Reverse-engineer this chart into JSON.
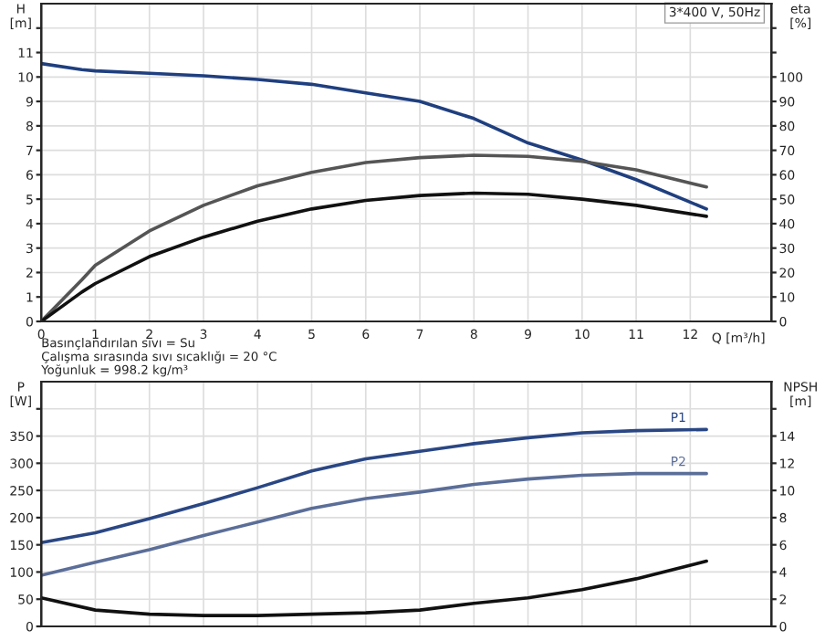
{
  "chart_data": [
    {
      "type": "line",
      "xlabel": "Q [m³/h]",
      "ylabel": "H\n[m]",
      "y2label": "eta\n[%]",
      "annotations": [
        "3*400 V, 50Hz",
        "Basınçlandırılan sıvı = Su",
        "Çalışma sırasında sıvı sıcaklığı = 20 °C",
        "Yoğunluk = 998.2 kg/m³"
      ],
      "x": [
        0,
        0.75,
        1,
        2,
        3,
        4,
        5,
        6,
        7,
        8,
        9,
        10,
        11,
        12.3
      ],
      "series": [
        {
          "color": "#1f3f7f",
          "values": [
            10.55,
            10.3,
            10.25,
            10.15,
            10.05,
            9.9,
            9.7,
            9.35,
            9.0,
            8.3,
            7.3,
            6.6,
            5.8,
            4.6
          ]
        },
        {
          "color": "#555555",
          "axis": "y2",
          "values": [
            0,
            17,
            23,
            37,
            47.5,
            55.5,
            61,
            65,
            67,
            68,
            67.5,
            65.5,
            62,
            55
          ]
        },
        {
          "color": "#111111",
          "axis": "y2",
          "values": [
            0,
            12,
            15.5,
            26.5,
            34.5,
            41,
            46,
            49.5,
            51.5,
            52.5,
            52,
            50,
            47.5,
            43
          ]
        }
      ],
      "xlim": [
        0,
        13.5
      ],
      "xticks": [
        0,
        1,
        2,
        3,
        4,
        5,
        6,
        7,
        8,
        9,
        10,
        11,
        12
      ],
      "ylim": [
        0,
        13
      ],
      "yticks": [
        0,
        1,
        2,
        3,
        4,
        5,
        6,
        7,
        8,
        9,
        10,
        11,
        {
          "value": 12,
          "label": null
        }
      ],
      "y2lim": [
        0,
        130
      ],
      "y2ticks": [
        0,
        10,
        20,
        30,
        40,
        50,
        60,
        70,
        80,
        90,
        100,
        {
          "value": 110,
          "label": null
        },
        {
          "value": 120,
          "label": null
        }
      ],
      "grid": true,
      "legend": false
    },
    {
      "type": "line",
      "ylabel": "P\n[W]",
      "y2label": "NPSH\n[m]",
      "x": [
        0,
        1,
        2,
        3,
        4,
        5,
        6,
        7,
        8,
        9,
        10,
        11,
        12.3
      ],
      "series": [
        {
          "name": "P1",
          "color": "#2a4784",
          "values": [
            154,
            172,
            198,
            226,
            255,
            286,
            308,
            322,
            336,
            347,
            356,
            360,
            362
          ]
        },
        {
          "name": "P2",
          "color": "#5b6e98",
          "values": [
            94,
            118,
            141,
            167,
            192,
            217,
            235,
            247,
            261,
            271,
            278,
            281,
            281
          ]
        },
        {
          "color": "#111111",
          "axis": "y2",
          "values": [
            2.1,
            1.2,
            0.9,
            0.8,
            0.8,
            0.9,
            1.0,
            1.2,
            1.7,
            2.1,
            2.7,
            3.5,
            4.8
          ]
        }
      ],
      "xlim": [
        0,
        13.5
      ],
      "xticks": [
        0,
        1,
        2,
        3,
        4,
        5,
        6,
        7,
        8,
        9,
        10,
        11,
        12
      ],
      "ylim": [
        0,
        450
      ],
      "yticks": [
        0,
        50,
        100,
        150,
        200,
        250,
        300,
        350,
        {
          "value": 400,
          "label": null
        }
      ],
      "y2lim": [
        0,
        18
      ],
      "y2ticks": [
        0,
        2,
        4,
        6,
        8,
        10,
        12,
        14,
        {
          "value": 16,
          "label": null
        }
      ],
      "tick_labels": "y",
      "grid": true,
      "legend": false
    }
  ]
}
